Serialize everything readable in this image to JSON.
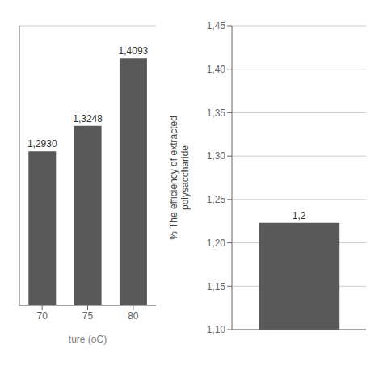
{
  "chart_data": [
    {
      "type": "bar",
      "categories": [
        "70",
        "75",
        "80"
      ],
      "values": [
        1.293,
        1.3248,
        1.4093
      ],
      "value_labels": [
        "1,2930",
        "1,3248",
        "1,4093"
      ],
      "data_labels": true,
      "xlabel": "ture (oC)",
      "ylim": [
        1.1,
        1.45
      ],
      "yticks": [
        1.1,
        1.15,
        1.2,
        1.25,
        1.3,
        1.35,
        1.4,
        1.45
      ],
      "tick_labels": "x",
      "grid": true,
      "color": "#595959"
    },
    {
      "type": "bar",
      "categories": [
        null
      ],
      "values": [
        1.223
      ],
      "value_labels": [
        "1,2"
      ],
      "data_labels": true,
      "ylabel": "% The efficiency of extracted\npolysaccharide",
      "ylim": [
        1.1,
        1.45
      ],
      "yticks": [
        {
          "value": 1.1,
          "label": "1,10"
        },
        {
          "value": 1.15,
          "label": "1,15"
        },
        {
          "value": 1.2,
          "label": "1,20"
        },
        {
          "value": 1.25,
          "label": "1,25"
        },
        {
          "value": 1.3,
          "label": "1,30"
        },
        {
          "value": 1.35,
          "label": "1,35"
        },
        {
          "value": 1.4,
          "label": "1,40"
        },
        {
          "value": 1.45,
          "label": "1,45"
        }
      ],
      "tick_labels": "y",
      "grid": true,
      "color": "#595959"
    }
  ]
}
